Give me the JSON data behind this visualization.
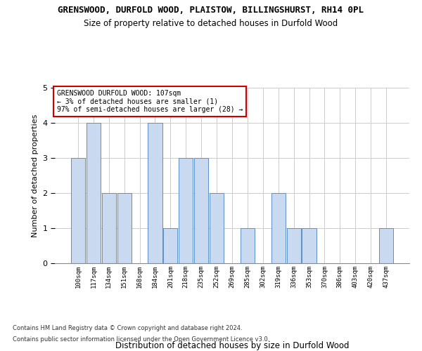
{
  "title": "GRENSWOOD, DURFOLD WOOD, PLAISTOW, BILLINGSHURST, RH14 0PL",
  "subtitle": "Size of property relative to detached houses in Durfold Wood",
  "xlabel": "Distribution of detached houses by size in Durfold Wood",
  "ylabel": "Number of detached properties",
  "footer_line1": "Contains HM Land Registry data © Crown copyright and database right 2024.",
  "footer_line2": "Contains public sector information licensed under the Open Government Licence v3.0.",
  "annotation_title": "GRENSWOOD DURFOLD WOOD: 107sqm",
  "annotation_line1": "← 3% of detached houses are smaller (1)",
  "annotation_line2": "97% of semi-detached houses are larger (28) →",
  "x_labels": [
    "100sqm",
    "117sqm",
    "134sqm",
    "151sqm",
    "168sqm",
    "184sqm",
    "201sqm",
    "218sqm",
    "235sqm",
    "252sqm",
    "269sqm",
    "285sqm",
    "302sqm",
    "319sqm",
    "336sqm",
    "353sqm",
    "370sqm",
    "386sqm",
    "403sqm",
    "420sqm",
    "437sqm"
  ],
  "bar_values": [
    3,
    4,
    2,
    2,
    0,
    4,
    1,
    3,
    3,
    2,
    0,
    1,
    0,
    2,
    1,
    1,
    0,
    0,
    0,
    0,
    1
  ],
  "bar_color": "#c9d9f0",
  "bar_edge_color": "#5b8fc9",
  "annotation_box_color": "#ffffff",
  "annotation_box_edge_color": "#cc0000",
  "ylim": [
    0,
    5
  ],
  "background_color": "#ffffff",
  "grid_color": "#cccccc",
  "title_fontsize": 9,
  "subtitle_fontsize": 8.5,
  "ylabel_fontsize": 8,
  "xlabel_fontsize": 8.5,
  "xtick_fontsize": 6.5,
  "ytick_fontsize": 8,
  "annotation_fontsize": 7,
  "footer_fontsize": 6
}
